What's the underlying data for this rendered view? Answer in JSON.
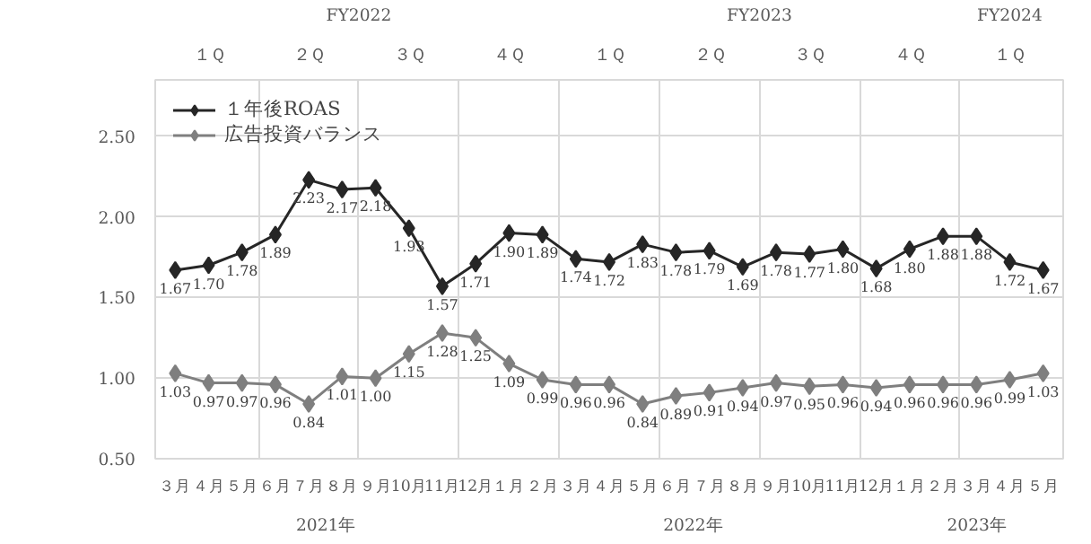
{
  "chart_data": {
    "type": "line",
    "categories": [
      "３月",
      "４月",
      "５月",
      "６月",
      "７月",
      "８月",
      "９月",
      "10月",
      "11月",
      "12月",
      "１月",
      "２月",
      "３月",
      "４月",
      "５月",
      "６月",
      "７月",
      "８月",
      "９月",
      "10月",
      "11月",
      "12月",
      "１月",
      "２月",
      "３月",
      "４月",
      "５月"
    ],
    "series": [
      {
        "name": "１年後ROAS",
        "color": "#262626",
        "values": [
          1.67,
          1.7,
          1.78,
          1.89,
          2.23,
          2.17,
          2.18,
          1.93,
          1.57,
          1.71,
          1.9,
          1.89,
          1.74,
          1.72,
          1.83,
          1.78,
          1.79,
          1.69,
          1.78,
          1.77,
          1.8,
          1.68,
          1.8,
          1.88,
          1.88,
          1.72,
          1.67
        ],
        "value_labels": [
          "1.67",
          "1.70",
          "1.78",
          "1.89",
          "2.23",
          "2.17",
          "2.18",
          "1.93",
          "1.57",
          "1.71",
          "1.90",
          "1.89",
          "1.74",
          "1.72",
          "1.83",
          "1.78",
          "1.79",
          "1.69",
          "1.78",
          "1.77",
          "1.80",
          "1.68",
          "1.80",
          "1.88",
          "1.88",
          "1.72",
          "1.67"
        ]
      },
      {
        "name": "広告投資バランス",
        "color": "#7f7f7f",
        "values": [
          1.03,
          0.97,
          0.97,
          0.96,
          0.84,
          1.01,
          1.0,
          1.15,
          1.28,
          1.25,
          1.09,
          0.99,
          0.96,
          0.96,
          0.84,
          0.89,
          0.91,
          0.94,
          0.97,
          0.95,
          0.96,
          0.94,
          0.96,
          0.96,
          0.96,
          0.99,
          1.03
        ],
        "value_labels": [
          "1.03",
          "0.97",
          "0.97",
          "0.96",
          "0.84",
          "1.01",
          "1.00",
          "1.15",
          "1.28",
          "1.25",
          "1.09",
          "0.99",
          "0.96",
          "0.96",
          "0.84",
          "0.89",
          "0.91",
          "0.94",
          "0.97",
          "0.95",
          "0.96",
          "0.94",
          "0.96",
          "0.96",
          "0.96",
          "0.99",
          "1.03"
        ]
      }
    ],
    "annotations": [
      "FY2022",
      "FY2023",
      "FY2024",
      "１Ｑ",
      "２Ｑ",
      "３Ｑ",
      "４Ｑ",
      "１Ｑ",
      "２Ｑ",
      "３Ｑ",
      "４Ｑ",
      "１Ｑ",
      "2021年",
      "2022年",
      "2023年"
    ],
    "ylim": [
      0.5,
      2.85
    ],
    "yticks": [
      {
        "value": 0.5,
        "label": "0.50"
      },
      {
        "value": 1.0,
        "label": "1.00"
      },
      {
        "value": 1.5,
        "label": "1.50"
      },
      {
        "value": 2.0,
        "label": "2.00"
      },
      {
        "value": 2.5,
        "label": "2.50"
      }
    ],
    "grid": true,
    "legend": "top left",
    "marker": "diamond",
    "line_style": "solid"
  }
}
